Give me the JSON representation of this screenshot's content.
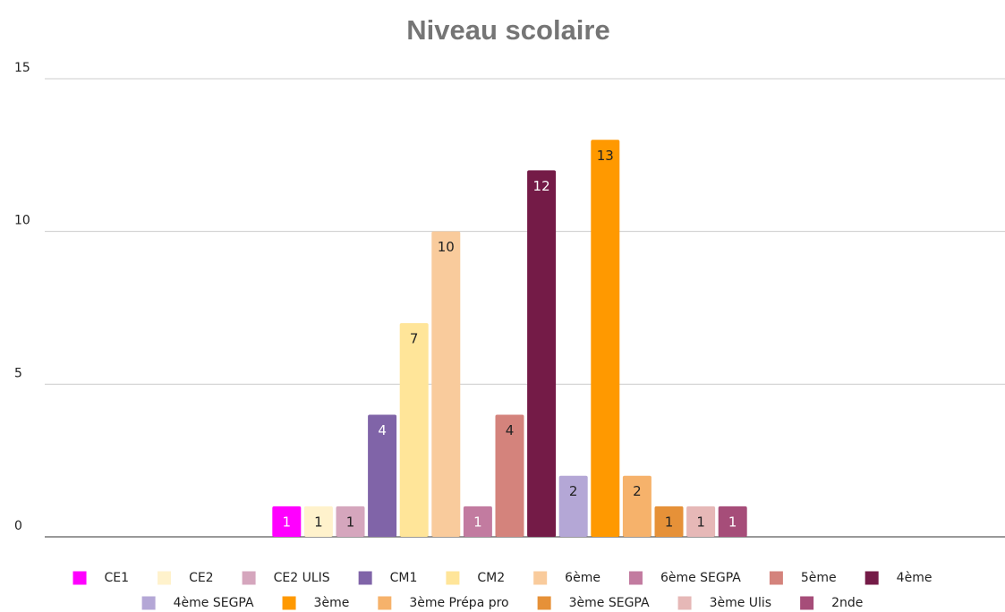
{
  "chart_data": {
    "type": "bar",
    "title": "Niveau scolaire",
    "categories": [
      null
    ],
    "series": [
      {
        "name": "CE1",
        "color": "#ff00ff",
        "values": [
          1
        ]
      },
      {
        "name": "CE2",
        "color": "#fff2cc",
        "values": [
          1
        ]
      },
      {
        "name": "CE2 ULIS",
        "color": "#d5a6bd",
        "values": [
          1
        ]
      },
      {
        "name": "CM1",
        "color": "#8064a8",
        "values": [
          4
        ]
      },
      {
        "name": "CM2",
        "color": "#ffe599",
        "values": [
          7
        ]
      },
      {
        "name": "6ème",
        "color": "#f9cb9c",
        "values": [
          10
        ]
      },
      {
        "name": "6ème SEGPA",
        "color": "#c27ba0",
        "values": [
          1
        ]
      },
      {
        "name": "5ème",
        "color": "#d4837c",
        "values": [
          4
        ]
      },
      {
        "name": "4ème",
        "color": "#741b47",
        "values": [
          12
        ]
      },
      {
        "name": "4ème SEGPA",
        "color": "#b4a7d6",
        "values": [
          2
        ]
      },
      {
        "name": "3ème",
        "color": "#ff9900",
        "values": [
          13
        ]
      },
      {
        "name": "3ème Prépa pro",
        "color": "#f6b26b",
        "values": [
          2
        ]
      },
      {
        "name": "3ème SEGPA",
        "color": "#e69138",
        "values": [
          1
        ]
      },
      {
        "name": "3ème Ulis",
        "color": "#e6b8b7",
        "values": [
          1
        ]
      },
      {
        "name": "2nde",
        "color": "#a64d79",
        "values": [
          1
        ]
      }
    ],
    "ylim": [
      0,
      15
    ],
    "yticks": [
      0,
      5,
      10,
      15
    ],
    "grid": true,
    "legend": "bottom"
  }
}
